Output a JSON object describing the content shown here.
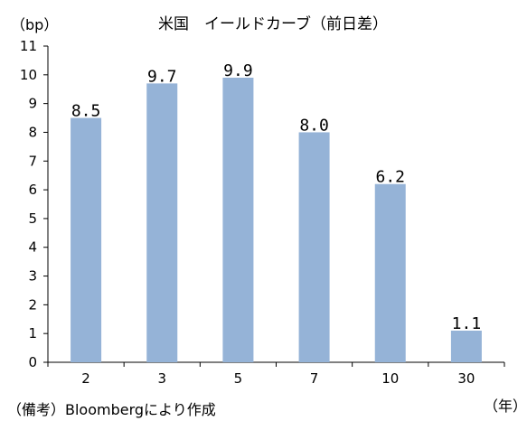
{
  "chart_data": {
    "type": "bar",
    "title": "米国　イールドカーブ（前日差）",
    "ylabel": "（bp）",
    "xlabel": "（年）",
    "categories": [
      "2",
      "3",
      "5",
      "7",
      "10",
      "30"
    ],
    "values": [
      8.5,
      9.7,
      9.9,
      8.0,
      6.2,
      1.1
    ],
    "data_labels": [
      "8.5",
      "9.7",
      "9.9",
      "8.0",
      "6.2",
      "1.1"
    ],
    "ylim": [
      0,
      11
    ],
    "yticks": [
      "0",
      "1",
      "2",
      "3",
      "4",
      "5",
      "6",
      "7",
      "8",
      "9",
      "10",
      "11"
    ],
    "grid": false,
    "legend": "none",
    "bar_color": "#95B3D7"
  },
  "source_note": "（備考）Bloombergにより作成"
}
